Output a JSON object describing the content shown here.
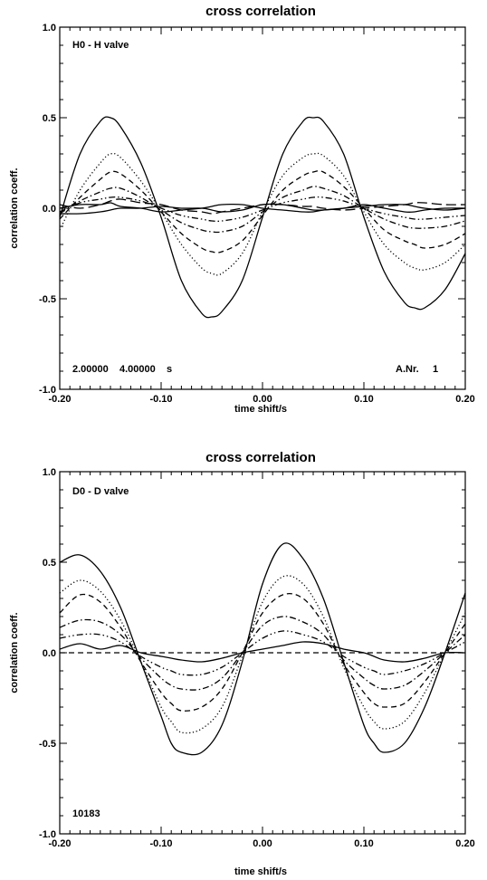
{
  "chart_data": [
    {
      "type": "line",
      "title": "cross correlation",
      "xlabel": "time shift/s",
      "ylabel": "correlation coeff.",
      "xlim": [
        -0.2,
        0.2
      ],
      "ylim": [
        -1.0,
        1.0
      ],
      "xticks": [
        "-0.20",
        "-0.10",
        "0.00",
        "0.10",
        "0.20"
      ],
      "yticks": [
        "1.0",
        "0.5",
        "0.0",
        "-0.5",
        "-1.0"
      ],
      "annotations": {
        "label": "H0 - H valve",
        "times": "2.00000    4.00000    s",
        "anr": "A.Nr.     1"
      },
      "x": [
        -0.2,
        -0.18,
        -0.16,
        -0.15,
        -0.14,
        -0.12,
        -0.1,
        -0.08,
        -0.06,
        -0.05,
        -0.04,
        -0.02,
        0.0,
        0.02,
        0.04,
        0.05,
        0.06,
        0.08,
        0.1,
        0.12,
        0.14,
        0.15,
        0.16,
        0.18,
        0.2
      ],
      "series": [
        {
          "style": "solid",
          "values": [
            -0.05,
            0.3,
            0.48,
            0.5,
            0.45,
            0.25,
            -0.05,
            -0.4,
            -0.58,
            -0.6,
            -0.57,
            -0.4,
            -0.05,
            0.3,
            0.48,
            0.5,
            0.48,
            0.3,
            -0.05,
            -0.35,
            -0.52,
            -0.55,
            -0.55,
            -0.45,
            -0.25
          ]
        },
        {
          "style": "dotted",
          "values": [
            -0.12,
            0.1,
            0.25,
            0.3,
            0.28,
            0.15,
            -0.02,
            -0.2,
            -0.33,
            -0.36,
            -0.36,
            -0.25,
            -0.02,
            0.18,
            0.28,
            0.3,
            0.29,
            0.18,
            -0.02,
            -0.2,
            -0.3,
            -0.33,
            -0.34,
            -0.3,
            -0.2
          ]
        },
        {
          "style": "dashed",
          "values": [
            -0.06,
            0.06,
            0.16,
            0.2,
            0.19,
            0.1,
            -0.02,
            -0.14,
            -0.22,
            -0.24,
            -0.24,
            -0.18,
            -0.04,
            0.1,
            0.18,
            0.2,
            0.2,
            0.12,
            0.0,
            -0.12,
            -0.18,
            -0.2,
            -0.22,
            -0.2,
            -0.14
          ]
        },
        {
          "style": "dashdot",
          "values": [
            -0.03,
            0.04,
            0.09,
            0.11,
            0.11,
            0.06,
            -0.01,
            -0.08,
            -0.12,
            -0.13,
            -0.13,
            -0.1,
            -0.02,
            0.06,
            0.1,
            0.12,
            0.11,
            0.07,
            0.0,
            -0.06,
            -0.1,
            -0.11,
            -0.11,
            -0.1,
            -0.07
          ]
        },
        {
          "style": "dashdotdot",
          "values": [
            -0.02,
            0.03,
            0.05,
            0.06,
            0.06,
            0.04,
            0.0,
            -0.04,
            -0.06,
            -0.07,
            -0.07,
            -0.05,
            -0.01,
            0.03,
            0.05,
            0.06,
            0.06,
            0.04,
            0.0,
            -0.03,
            -0.05,
            -0.06,
            -0.06,
            -0.05,
            -0.04
          ]
        },
        {
          "style": "longdash",
          "values": [
            0.02,
            0.0,
            0.02,
            0.04,
            0.05,
            0.03,
            0.02,
            -0.01,
            -0.02,
            -0.03,
            -0.02,
            0.0,
            0.02,
            0.02,
            0.01,
            0.01,
            0.0,
            -0.01,
            0.0,
            0.01,
            0.02,
            0.03,
            0.03,
            0.02,
            0.02
          ]
        },
        {
          "style": "solid",
          "values": [
            0.0,
            0.02,
            0.02,
            0.03,
            0.01,
            0.0,
            -0.02,
            -0.01,
            0.0,
            0.01,
            0.02,
            0.02,
            0.0,
            -0.01,
            -0.02,
            -0.02,
            -0.01,
            0.0,
            0.01,
            0.02,
            0.02,
            0.01,
            0.0,
            -0.01,
            0.0
          ]
        },
        {
          "style": "solid",
          "values": [
            -0.03,
            -0.03,
            -0.02,
            -0.01,
            0.0,
            0.0,
            0.01,
            0.0,
            0.0,
            -0.01,
            -0.02,
            -0.01,
            0.02,
            0.02,
            0.0,
            -0.01,
            -0.01,
            0.0,
            0.02,
            0.0,
            -0.02,
            -0.02,
            -0.01,
            0.0,
            0.0
          ]
        }
      ]
    },
    {
      "type": "line",
      "title": "cross correlation",
      "xlabel": "time shift/s",
      "ylabel": "correlation coeff.",
      "xlim": [
        -0.2,
        0.2
      ],
      "ylim": [
        -1.0,
        1.0
      ],
      "xticks": [
        "-0.20",
        "-0.10",
        "0.00",
        "0.10",
        "0.20"
      ],
      "yticks": [
        "1.0",
        "0.5",
        "0.0",
        "-0.5",
        "-1.0"
      ],
      "annotations": {
        "label": "D0 - D valve",
        "id": "10183"
      },
      "x": [
        -0.2,
        -0.18,
        -0.16,
        -0.14,
        -0.12,
        -0.1,
        -0.09,
        -0.08,
        -0.06,
        -0.04,
        -0.02,
        0.0,
        0.02,
        0.04,
        0.06,
        0.08,
        0.1,
        0.11,
        0.12,
        0.14,
        0.16,
        0.18,
        0.2
      ],
      "series": [
        {
          "style": "solid",
          "values": [
            0.5,
            0.54,
            0.45,
            0.25,
            -0.05,
            -0.35,
            -0.5,
            -0.55,
            -0.55,
            -0.4,
            -0.05,
            0.38,
            0.6,
            0.52,
            0.3,
            -0.05,
            -0.4,
            -0.5,
            -0.55,
            -0.5,
            -0.3,
            0.0,
            0.33
          ]
        },
        {
          "style": "dotted",
          "values": [
            0.33,
            0.4,
            0.34,
            0.18,
            -0.05,
            -0.3,
            -0.38,
            -0.44,
            -0.42,
            -0.3,
            -0.02,
            0.28,
            0.42,
            0.38,
            0.2,
            -0.08,
            -0.3,
            -0.38,
            -0.42,
            -0.38,
            -0.22,
            0.0,
            0.22
          ]
        },
        {
          "style": "dashed",
          "values": [
            0.22,
            0.32,
            0.28,
            0.14,
            -0.05,
            -0.22,
            -0.28,
            -0.32,
            -0.3,
            -0.2,
            0.0,
            0.22,
            0.32,
            0.3,
            0.16,
            -0.06,
            -0.22,
            -0.28,
            -0.3,
            -0.28,
            -0.16,
            0.0,
            0.16
          ]
        },
        {
          "style": "dashdot",
          "values": [
            0.14,
            0.18,
            0.17,
            0.1,
            -0.03,
            -0.14,
            -0.18,
            -0.2,
            -0.2,
            -0.14,
            0.0,
            0.15,
            0.2,
            0.17,
            0.1,
            -0.04,
            -0.14,
            -0.18,
            -0.2,
            -0.18,
            -0.1,
            0.0,
            0.1
          ]
        },
        {
          "style": "dashdotdot",
          "values": [
            0.08,
            0.1,
            0.1,
            0.06,
            -0.02,
            -0.08,
            -0.1,
            -0.12,
            -0.12,
            -0.08,
            0.0,
            0.08,
            0.12,
            0.1,
            0.06,
            -0.02,
            -0.08,
            -0.1,
            -0.12,
            -0.1,
            -0.06,
            0.0,
            0.06
          ]
        },
        {
          "style": "solid",
          "values": [
            0.02,
            0.05,
            0.02,
            0.04,
            0.0,
            -0.02,
            -0.03,
            -0.04,
            -0.05,
            -0.03,
            0.0,
            0.02,
            0.04,
            0.06,
            0.05,
            0.02,
            0.0,
            -0.02,
            -0.04,
            -0.05,
            -0.03,
            0.0,
            0.0
          ]
        },
        {
          "style": "dashed",
          "values": [
            0.0,
            0.0,
            0.0,
            0.0,
            0.0,
            0.0,
            0.0,
            0.0,
            0.0,
            0.0,
            0.0,
            0.0,
            0.0,
            0.0,
            0.0,
            0.0,
            0.0,
            0.0,
            0.0,
            0.0,
            0.0,
            0.0,
            0.0
          ]
        }
      ]
    }
  ]
}
